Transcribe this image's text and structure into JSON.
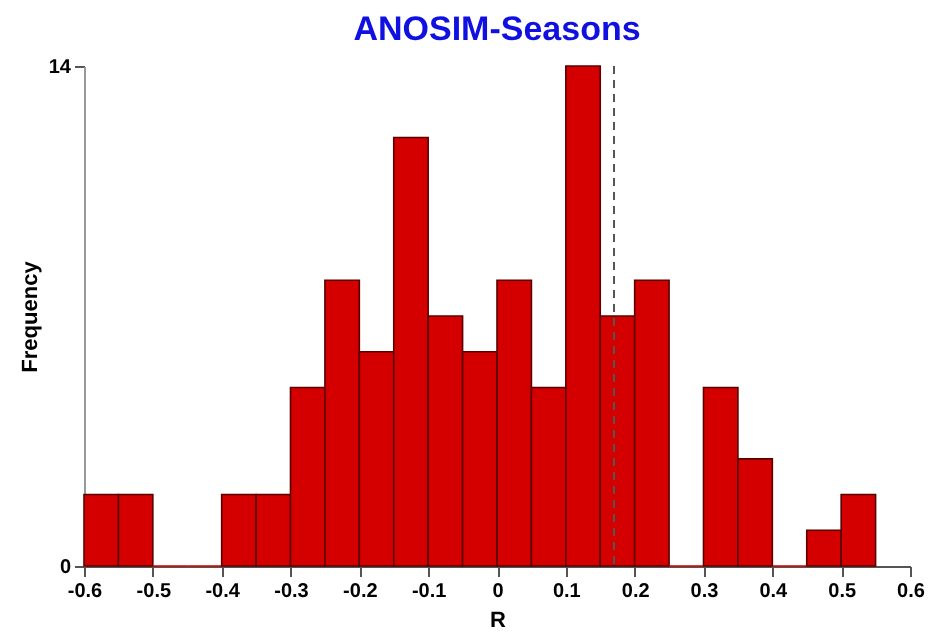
{
  "chart_data": {
    "type": "histogram",
    "title": "ANOSIM-Seasons",
    "xlabel": "R",
    "ylabel": "Frequency",
    "bins": [
      -0.6,
      -0.55,
      -0.5,
      -0.45,
      -0.4,
      -0.35,
      -0.3,
      -0.25,
      -0.2,
      -0.15,
      -0.1,
      -0.05,
      0,
      0.05,
      0.1,
      0.15,
      0.2,
      0.25,
      0.3,
      0.35,
      0.4,
      0.45,
      0.5,
      0.55
    ],
    "values": [
      2,
      2,
      0,
      0,
      2,
      2,
      5,
      8,
      6,
      12,
      7,
      6,
      8,
      5,
      14,
      7,
      8,
      0,
      5,
      3,
      0,
      1,
      2
    ],
    "color": "#d40000",
    "xlim": [
      -0.6,
      0.6
    ],
    "xticks": [
      -0.6,
      -0.5,
      -0.4,
      -0.3,
      -0.2,
      -0.1,
      0,
      0.1,
      0.2,
      0.3,
      0.4,
      0.5,
      0.6
    ],
    "ylim": [
      0,
      14
    ],
    "yticks": [
      0,
      14
    ],
    "ref_lines": [
      {
        "axis": "x",
        "value": 0.17,
        "line_style": "dashed",
        "color": "#555555"
      }
    ],
    "grid": false
  }
}
